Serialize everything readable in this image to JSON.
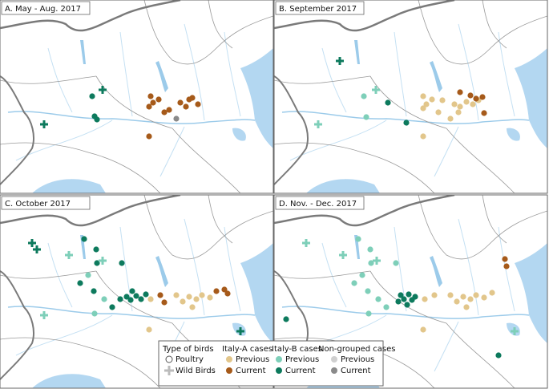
{
  "panels": [
    {
      "title": "A. May - Aug. 2017"
    },
    {
      "title": "B. September 2017"
    },
    {
      "title": "C. October 2017"
    },
    {
      "title": "D. Nov. - Dec. 2017"
    }
  ],
  "legend": {
    "birds": {
      "title": "Type of birds",
      "items": [
        "Poultry",
        "Wild Birds"
      ]
    },
    "groups": [
      {
        "title": "Italy-A cases",
        "items": [
          "Previous",
          "Current"
        ]
      },
      {
        "title": "Italy-B cases",
        "items": [
          "Previous",
          "Current"
        ]
      },
      {
        "title": "Non-grouped cases",
        "items": [
          "Previous",
          "Current"
        ]
      }
    ]
  }
}
